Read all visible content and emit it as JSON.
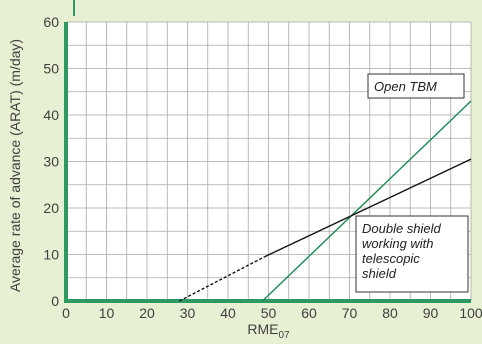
{
  "chart_data": {
    "type": "line",
    "xlabel": "RME",
    "xlabel_sub": "07",
    "ylabel": "Average rate of advance (ARAT) (m/day)",
    "xlim": [
      0,
      100
    ],
    "ylim": [
      0,
      60
    ],
    "x_ticks": [
      "0",
      "10",
      "20",
      "30",
      "40",
      "50",
      "60",
      "70",
      "80",
      "90",
      "100"
    ],
    "y_ticks": [
      "0",
      "10",
      "20",
      "30",
      "40",
      "50",
      "60"
    ],
    "grid": true,
    "colors": {
      "plot_bg": "#ffffff",
      "page_bg": "#e7f0d3",
      "grid": "#a9a9a9",
      "axis_bar": "#2e9a63",
      "open_tbm": "#1a8a52",
      "double_shield": "#111111"
    },
    "series": [
      {
        "name": "Open TBM",
        "points": [
          [
            48.5,
            0
          ],
          [
            100,
            43
          ]
        ],
        "color": "#1a8a52"
      },
      {
        "name": "Double shield working with telescopic shield",
        "points": [
          [
            49,
            9.5
          ],
          [
            100,
            30.5
          ]
        ],
        "dashed_points": [
          [
            28,
            0
          ],
          [
            49,
            9.5
          ]
        ],
        "color": "#111111"
      }
    ],
    "annotations": [
      {
        "lines": [
          "Open TBM"
        ]
      },
      {
        "lines": [
          "Double shield",
          "working with",
          "telescopic",
          "shield"
        ]
      }
    ]
  }
}
